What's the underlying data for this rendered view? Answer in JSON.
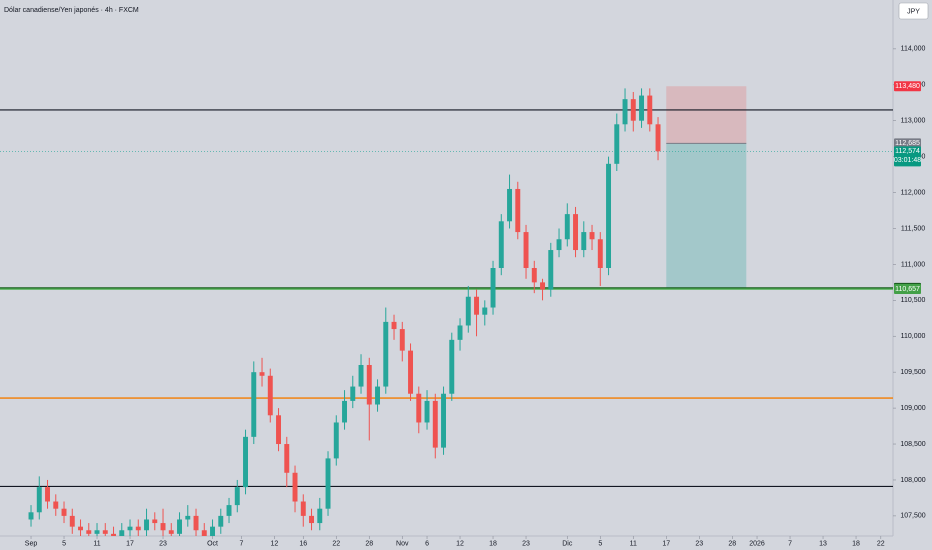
{
  "chart_data": {
    "type": "candlestick",
    "title": "Dólar canadiense/Yen japonés · 4h · FXCM",
    "currency": "JPY",
    "up_color": "#26a69a",
    "down_color": "#ef5350",
    "xlim": [
      -3.76,
      104.48
    ],
    "ylim": [
      107.22,
      114.68
    ],
    "xticks": [
      {
        "value": 0,
        "label": "Sep"
      },
      {
        "value": 4,
        "label": "5"
      },
      {
        "value": 8,
        "label": "11"
      },
      {
        "value": 12,
        "label": "17"
      },
      {
        "value": 16,
        "label": "23"
      },
      {
        "value": 22,
        "label": "Oct"
      },
      {
        "value": 25.5,
        "label": "7"
      },
      {
        "value": 29.5,
        "label": "12"
      },
      {
        "value": 33,
        "label": "16"
      },
      {
        "value": 37,
        "label": "22"
      },
      {
        "value": 41,
        "label": "28"
      },
      {
        "value": 45,
        "label": "Nov"
      },
      {
        "value": 48,
        "label": "6"
      },
      {
        "value": 52,
        "label": "12"
      },
      {
        "value": 56,
        "label": "18"
      },
      {
        "value": 60,
        "label": "23"
      },
      {
        "value": 65,
        "label": "Dic"
      },
      {
        "value": 69,
        "label": "5"
      },
      {
        "value": 73,
        "label": "11"
      },
      {
        "value": 77,
        "label": "17"
      },
      {
        "value": 81,
        "label": "23"
      },
      {
        "value": 85,
        "label": "28"
      },
      {
        "value": 88,
        "label": "2026"
      },
      {
        "value": 92,
        "label": "7"
      },
      {
        "value": 96,
        "label": "13"
      },
      {
        "value": 100,
        "label": "18"
      },
      {
        "value": 103,
        "label": "22"
      }
    ],
    "yticks": [
      {
        "value": 114,
        "label": "114,000"
      },
      {
        "value": 113.5,
        "label": "113,500"
      },
      {
        "value": 113,
        "label": "113,000"
      },
      {
        "value": 112.5,
        "label": "112,500"
      },
      {
        "value": 112,
        "label": "112,000"
      },
      {
        "value": 111.5,
        "label": "111,500"
      },
      {
        "value": 111,
        "label": "111,000"
      },
      {
        "value": 110.5,
        "label": "110,500"
      },
      {
        "value": 110,
        "label": "110,000"
      },
      {
        "value": 109.5,
        "label": "109,500"
      },
      {
        "value": 109,
        "label": "109,000"
      },
      {
        "value": 108.5,
        "label": "108,500"
      },
      {
        "value": 108,
        "label": "108,000"
      },
      {
        "value": 107.5,
        "label": "107,500"
      }
    ],
    "candles": {
      "x": [
        0,
        1,
        2,
        3,
        4,
        5,
        6,
        7,
        8,
        9,
        10,
        11,
        12,
        13,
        14,
        15,
        16,
        17,
        18,
        19,
        20,
        21,
        22,
        23,
        24,
        25,
        26,
        27,
        28,
        29,
        30,
        31,
        32,
        33,
        34,
        35,
        36,
        37,
        38,
        39,
        40,
        41,
        42,
        43,
        44,
        45,
        46,
        47,
        48,
        49,
        50,
        51,
        52,
        53,
        54,
        55,
        56,
        57,
        58,
        59,
        60,
        61,
        62,
        63,
        64,
        65,
        66,
        67,
        68,
        69,
        70,
        71,
        72,
        73,
        74,
        75,
        76
      ],
      "open": [
        107.45,
        107.55,
        107.9,
        107.7,
        107.6,
        107.5,
        107.35,
        107.3,
        107.25,
        107.3,
        107.25,
        107.2,
        107.3,
        107.35,
        107.3,
        107.45,
        107.4,
        107.3,
        107.25,
        107.45,
        107.5,
        107.3,
        107.2,
        107.35,
        107.5,
        107.65,
        107.9,
        108.6,
        109.5,
        109.45,
        108.9,
        108.5,
        108.1,
        107.7,
        107.5,
        107.4,
        107.6,
        108.3,
        108.8,
        109.1,
        109.3,
        109.6,
        109.05,
        109.3,
        110.2,
        110.1,
        109.8,
        109.2,
        108.8,
        109.1,
        108.45,
        109.2,
        109.95,
        110.15,
        110.55,
        110.3,
        110.4,
        110.95,
        111.6,
        112.05,
        111.45,
        110.95,
        110.75,
        110.65,
        111.2,
        111.35,
        111.7,
        111.2,
        111.45,
        111.35,
        110.95,
        112.4,
        112.95,
        113.3,
        113.0,
        113.35,
        112.95
      ],
      "high": [
        107.65,
        108.05,
        108.0,
        107.8,
        107.7,
        107.6,
        107.45,
        107.4,
        107.4,
        107.4,
        107.35,
        107.4,
        107.45,
        107.45,
        107.6,
        107.55,
        107.6,
        107.4,
        107.55,
        107.65,
        107.6,
        107.4,
        107.45,
        107.6,
        107.75,
        108.0,
        108.7,
        109.65,
        109.7,
        109.55,
        109.0,
        108.6,
        108.2,
        107.8,
        107.6,
        107.75,
        108.4,
        108.9,
        109.25,
        109.45,
        109.75,
        109.7,
        109.4,
        110.4,
        110.3,
        110.2,
        109.9,
        109.3,
        109.25,
        109.2,
        109.3,
        110.05,
        110.25,
        110.7,
        110.65,
        110.5,
        111.05,
        111.7,
        112.25,
        112.15,
        111.55,
        111.05,
        110.8,
        111.3,
        111.5,
        111.85,
        111.8,
        111.6,
        111.55,
        111.45,
        112.5,
        113.1,
        113.45,
        113.4,
        113.45,
        113.45,
        113.05
      ],
      "low": [
        107.35,
        107.45,
        107.6,
        107.5,
        107.4,
        107.25,
        107.2,
        107.15,
        107.15,
        107.15,
        107.1,
        107.1,
        107.2,
        107.2,
        107.2,
        107.3,
        107.2,
        107.15,
        107.15,
        107.35,
        107.2,
        107.1,
        107.1,
        107.25,
        107.4,
        107.55,
        107.8,
        108.5,
        109.3,
        108.8,
        108.4,
        107.9,
        107.55,
        107.35,
        107.3,
        107.3,
        107.5,
        108.2,
        108.7,
        109.0,
        109.2,
        108.55,
        108.95,
        109.2,
        109.95,
        109.65,
        109.1,
        108.65,
        108.7,
        108.3,
        108.35,
        109.1,
        109.8,
        110.05,
        110.0,
        110.15,
        110.3,
        110.85,
        111.5,
        111.35,
        110.8,
        110.6,
        110.5,
        110.55,
        111.1,
        111.25,
        111.1,
        111.1,
        111.2,
        110.7,
        110.85,
        112.3,
        112.85,
        112.85,
        112.9,
        112.85,
        112.45
      ],
      "close": [
        107.55,
        107.9,
        107.7,
        107.6,
        107.5,
        107.35,
        107.3,
        107.25,
        107.3,
        107.25,
        107.2,
        107.3,
        107.35,
        107.3,
        107.45,
        107.4,
        107.3,
        107.25,
        107.45,
        107.5,
        107.3,
        107.2,
        107.35,
        107.5,
        107.65,
        107.9,
        108.6,
        109.5,
        109.45,
        108.9,
        108.5,
        108.1,
        107.7,
        107.5,
        107.4,
        107.6,
        108.3,
        108.8,
        109.1,
        109.3,
        109.6,
        109.05,
        109.3,
        110.2,
        110.1,
        109.8,
        109.2,
        108.8,
        109.1,
        108.45,
        109.2,
        109.95,
        110.15,
        110.55,
        110.3,
        110.4,
        110.95,
        111.6,
        112.05,
        111.45,
        110.95,
        110.75,
        110.65,
        111.2,
        111.35,
        111.7,
        111.2,
        111.45,
        111.35,
        110.95,
        112.4,
        112.95,
        113.3,
        113.0,
        113.35,
        112.95,
        112.574
      ]
    },
    "levels": [
      {
        "value": 113.15,
        "color": "#131722"
      },
      {
        "value": 110.673,
        "color": "#1b5e20"
      },
      {
        "value": 110.657,
        "color": "#4caf50"
      },
      {
        "value": 109.14,
        "color": "#f57c00"
      },
      {
        "value": 107.91,
        "color": "#131722"
      }
    ],
    "position": {
      "x_start": 77,
      "x_end": 86.7,
      "stop": {
        "value": 113.48,
        "label": "113,480"
      },
      "entry": {
        "value": 112.685,
        "label": "112,685"
      },
      "target": {
        "value": 110.673,
        "label": "110,673"
      }
    },
    "current_price": {
      "value": 112.574,
      "label": "112,574",
      "countdown": "03:01:48"
    },
    "support_label": {
      "value": 110.657,
      "label": "110,657"
    }
  }
}
